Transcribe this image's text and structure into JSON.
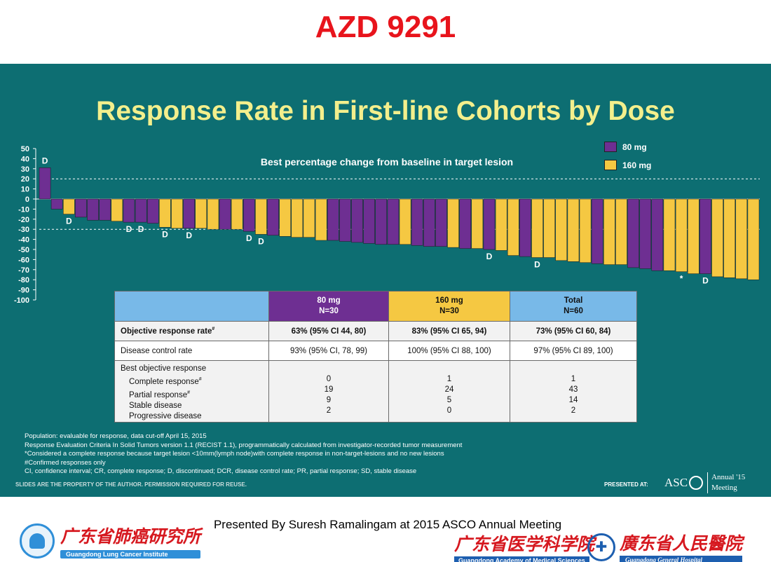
{
  "top_title": "AZD 9291",
  "slide": {
    "title": "Response Rate in First-line Cohorts by Dose",
    "notice": "SLIDES ARE THE PROPERTY OF THE AUTHOR. PERMISSION REQUIRED FOR REUSE.",
    "presented_at": "PRESENTED AT:",
    "asco": {
      "name": "ASC",
      "annual": "Annual '15",
      "meeting": "Meeting"
    }
  },
  "chart_data": {
    "type": "bar",
    "title": "Best percentage change from baseline in target lesion",
    "ylim": [
      -100,
      50
    ],
    "yticks": [
      50,
      40,
      30,
      20,
      10,
      0,
      -10,
      -20,
      -30,
      -40,
      -50,
      -60,
      -70,
      -80,
      -90,
      -100
    ],
    "ytick_labels": [
      "50",
      "40",
      "30",
      "20",
      "10",
      "0",
      "-10",
      "-20",
      "-30",
      "-40",
      "-50",
      "-60",
      "-70",
      "-80",
      "-90",
      "-100"
    ],
    "reference_lines": [
      20,
      -30
    ],
    "colors": {
      "80 mg": "#6e2f92",
      "160 mg": "#f5c842"
    },
    "legend": [
      {
        "name": "80 mg",
        "color": "#6e2f92"
      },
      {
        "name": "160 mg",
        "color": "#f5c842"
      }
    ],
    "legend_position": "top-right",
    "bars": [
      {
        "dose": "80 mg",
        "value": 31,
        "mark": "D"
      },
      {
        "dose": "80 mg",
        "value": -10,
        "mark": ""
      },
      {
        "dose": "160 mg",
        "value": -15,
        "mark": "D"
      },
      {
        "dose": "80 mg",
        "value": -18,
        "mark": ""
      },
      {
        "dose": "80 mg",
        "value": -21,
        "mark": ""
      },
      {
        "dose": "80 mg",
        "value": -21,
        "mark": ""
      },
      {
        "dose": "160 mg",
        "value": -22,
        "mark": ""
      },
      {
        "dose": "80 mg",
        "value": -23,
        "mark": "D"
      },
      {
        "dose": "80 mg",
        "value": -23,
        "mark": "D"
      },
      {
        "dose": "80 mg",
        "value": -24,
        "mark": ""
      },
      {
        "dose": "160 mg",
        "value": -28,
        "mark": "D"
      },
      {
        "dose": "160 mg",
        "value": -29,
        "mark": ""
      },
      {
        "dose": "80 mg",
        "value": -29,
        "mark": "D"
      },
      {
        "dose": "160 mg",
        "value": -29,
        "mark": ""
      },
      {
        "dose": "160 mg",
        "value": -30,
        "mark": ""
      },
      {
        "dose": "80 mg",
        "value": -30,
        "mark": ""
      },
      {
        "dose": "160 mg",
        "value": -30,
        "mark": ""
      },
      {
        "dose": "80 mg",
        "value": -32,
        "mark": "D"
      },
      {
        "dose": "160 mg",
        "value": -35,
        "mark": "D"
      },
      {
        "dose": "80 mg",
        "value": -36,
        "mark": ""
      },
      {
        "dose": "160 mg",
        "value": -37,
        "mark": ""
      },
      {
        "dose": "160 mg",
        "value": -38,
        "mark": ""
      },
      {
        "dose": "160 mg",
        "value": -38,
        "mark": ""
      },
      {
        "dose": "160 mg",
        "value": -41,
        "mark": ""
      },
      {
        "dose": "80 mg",
        "value": -41,
        "mark": ""
      },
      {
        "dose": "80 mg",
        "value": -42,
        "mark": ""
      },
      {
        "dose": "80 mg",
        "value": -43,
        "mark": ""
      },
      {
        "dose": "80 mg",
        "value": -44,
        "mark": ""
      },
      {
        "dose": "80 mg",
        "value": -45,
        "mark": ""
      },
      {
        "dose": "80 mg",
        "value": -45,
        "mark": ""
      },
      {
        "dose": "160 mg",
        "value": -45,
        "mark": ""
      },
      {
        "dose": "80 mg",
        "value": -46,
        "mark": ""
      },
      {
        "dose": "80 mg",
        "value": -47,
        "mark": ""
      },
      {
        "dose": "80 mg",
        "value": -47,
        "mark": ""
      },
      {
        "dose": "160 mg",
        "value": -48,
        "mark": ""
      },
      {
        "dose": "80 mg",
        "value": -49,
        "mark": ""
      },
      {
        "dose": "160 mg",
        "value": -49,
        "mark": ""
      },
      {
        "dose": "80 mg",
        "value": -50,
        "mark": "D"
      },
      {
        "dose": "160 mg",
        "value": -51,
        "mark": ""
      },
      {
        "dose": "160 mg",
        "value": -56,
        "mark": ""
      },
      {
        "dose": "80 mg",
        "value": -57,
        "mark": ""
      },
      {
        "dose": "160 mg",
        "value": -58,
        "mark": "D"
      },
      {
        "dose": "160 mg",
        "value": -58,
        "mark": ""
      },
      {
        "dose": "160 mg",
        "value": -61,
        "mark": ""
      },
      {
        "dose": "160 mg",
        "value": -62,
        "mark": ""
      },
      {
        "dose": "160 mg",
        "value": -63,
        "mark": ""
      },
      {
        "dose": "80 mg",
        "value": -64,
        "mark": ""
      },
      {
        "dose": "160 mg",
        "value": -65,
        "mark": ""
      },
      {
        "dose": "160 mg",
        "value": -65,
        "mark": ""
      },
      {
        "dose": "80 mg",
        "value": -68,
        "mark": ""
      },
      {
        "dose": "80 mg",
        "value": -69,
        "mark": ""
      },
      {
        "dose": "80 mg",
        "value": -71,
        "mark": ""
      },
      {
        "dose": "160 mg",
        "value": -71,
        "mark": ""
      },
      {
        "dose": "160 mg",
        "value": -72,
        "mark": "*"
      },
      {
        "dose": "160 mg",
        "value": -74,
        "mark": ""
      },
      {
        "dose": "80 mg",
        "value": -74,
        "mark": "D"
      },
      {
        "dose": "160 mg",
        "value": -77,
        "mark": ""
      },
      {
        "dose": "160 mg",
        "value": -78,
        "mark": ""
      },
      {
        "dose": "160 mg",
        "value": -79,
        "mark": ""
      },
      {
        "dose": "160 mg",
        "value": -80,
        "mark": ""
      }
    ]
  },
  "table": {
    "headers": [
      {
        "label": "80 mg",
        "n": "N=30"
      },
      {
        "label": "160 mg",
        "n": "N=30"
      },
      {
        "label": "Total",
        "n": "N=60"
      }
    ],
    "orr": {
      "label": "Objective response rate",
      "sup": "#",
      "values": [
        "63% (95% CI 44, 80)",
        "83% (95% CI 65, 94)",
        "73% (95% CI 60, 84)"
      ]
    },
    "dcr": {
      "label": "Disease control rate",
      "values": [
        "93% (95% CI, 78, 99)",
        "100% (95% CI 88, 100)",
        "97% (95% CI 89, 100)"
      ]
    },
    "best": {
      "label": "Best objective response",
      "items": [
        {
          "label": "Complete response",
          "sup": "#",
          "values": [
            "0",
            "1",
            "1"
          ]
        },
        {
          "label": "Partial response",
          "sup": "#",
          "values": [
            "19",
            "24",
            "43"
          ]
        },
        {
          "label": "Stable disease",
          "sup": "",
          "values": [
            "9",
            "5",
            "14"
          ]
        },
        {
          "label": "Progressive disease",
          "sup": "",
          "values": [
            "2",
            "0",
            "2"
          ]
        }
      ]
    }
  },
  "footnotes": [
    "Population: evaluable for response, data cut-off April 15, 2015",
    "Response Evaluation Criteria In Solid Tumors version 1.1 (RECIST 1.1), programmatically calculated from investigator-recorded tumor measurement",
    "*Considered a complete response because target lesion <10mm(lymph node)with complete response in non-target-lesions and no new lesions",
    "#Confirmed responses only",
    "CI, confidence interval; CR, complete response; D, discontinued; DCR, disease control rate; PR, partial response; SD, stable disease"
  ],
  "presenter": "Presented By Suresh Ramalingam at 2015 ASCO Annual Meeting",
  "logos": {
    "left": {
      "cn": "广东省肺癌研究所",
      "en": "Guangdong Lung Cancer Institute"
    },
    "mid": {
      "cn": "广东省医学科学院",
      "en": "Guangdong Academy of Medical Sciences"
    },
    "right": {
      "cn": "廣东省人民醫院",
      "en": "Guangdong General Hospital"
    }
  }
}
